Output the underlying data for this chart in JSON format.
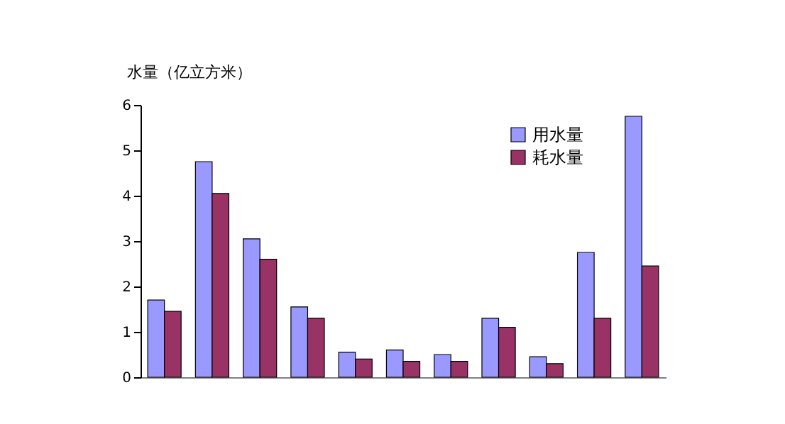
{
  "chart_data": {
    "type": "bar",
    "ylabel": "水量（亿立方米）",
    "categories": [
      null,
      null,
      null,
      null,
      null,
      null,
      null,
      null,
      null,
      null,
      null
    ],
    "series": [
      {
        "name": "用水量",
        "color": "#9999ff",
        "values": [
          1.7,
          4.75,
          3.05,
          1.55,
          0.55,
          0.6,
          0.5,
          1.3,
          0.45,
          2.75,
          5.75
        ]
      },
      {
        "name": "耗水量",
        "color": "#993366",
        "values": [
          1.45,
          4.05,
          2.6,
          1.3,
          0.4,
          0.35,
          0.35,
          1.1,
          0.3,
          1.3,
          2.45
        ]
      }
    ],
    "ylim": [
      0,
      6
    ],
    "yticks": [
      0,
      1,
      2,
      3,
      4,
      5,
      6
    ],
    "grid": false,
    "legend": "top",
    "tick_labels": "y"
  }
}
